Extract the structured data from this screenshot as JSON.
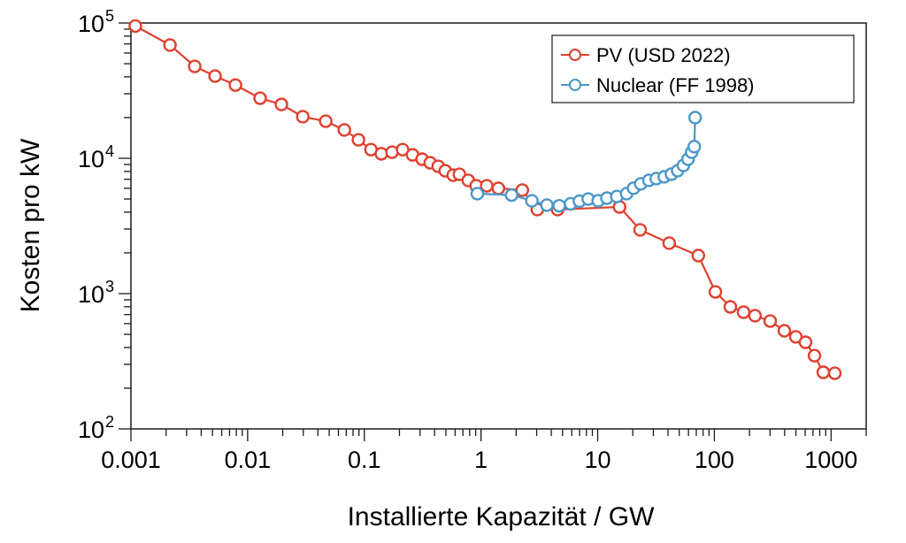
{
  "chart_data": {
    "type": "line",
    "title": "",
    "xlabel": "Installierte Kapazität / GW",
    "ylabel": "Kosten pro kW",
    "xscale": "log",
    "yscale": "log",
    "xlim": [
      0.001,
      2000
    ],
    "ylim": [
      100,
      100000
    ],
    "x_ticks": [
      {
        "value": 0.001,
        "label": "0.001"
      },
      {
        "value": 0.01,
        "label": "0.01"
      },
      {
        "value": 0.1,
        "label": "0.1"
      },
      {
        "value": 1,
        "label": "1"
      },
      {
        "value": 10,
        "label": "10"
      },
      {
        "value": 100,
        "label": "100"
      },
      {
        "value": 1000,
        "label": "1000"
      }
    ],
    "y_ticks": [
      {
        "value": 100,
        "base": "10",
        "exp": "2"
      },
      {
        "value": 1000,
        "base": "10",
        "exp": "3"
      },
      {
        "value": 10000,
        "base": "10",
        "exp": "4"
      },
      {
        "value": 100000,
        "base": "10",
        "exp": "5"
      }
    ],
    "grid": false,
    "legend_position": "top-right",
    "series": [
      {
        "name": "PV (USD 2022)",
        "color": "#e0402f",
        "marker": "open-circle",
        "x": [
          0.00109,
          0.00216,
          0.00352,
          0.00526,
          0.00786,
          0.0128,
          0.0195,
          0.0297,
          0.0467,
          0.0674,
          0.0891,
          0.114,
          0.14,
          0.173,
          0.213,
          0.259,
          0.313,
          0.367,
          0.43,
          0.494,
          0.578,
          0.653,
          0.778,
          0.91,
          1.12,
          1.41,
          2.26,
          3.04,
          4.54,
          15.4,
          23.1,
          41.0,
          72.9,
          102,
          137,
          178,
          223,
          301,
          398,
          499,
          604,
          721,
          858,
          1077
        ],
        "y": [
          95000,
          68700,
          47800,
          40500,
          34800,
          27800,
          25000,
          20300,
          18800,
          16200,
          13700,
          11600,
          10800,
          11100,
          11600,
          10600,
          9850,
          9270,
          8730,
          8090,
          7510,
          7620,
          6870,
          6270,
          6270,
          6000,
          5820,
          4180,
          4180,
          4370,
          2960,
          2360,
          1910,
          1030,
          798,
          729,
          687,
          627,
          531,
          479,
          437,
          348,
          262,
          258
        ]
      },
      {
        "name": "Nuclear (FF 1998)",
        "color": "#4a97c9",
        "marker": "open-circle",
        "x": [
          0.93,
          1.83,
          2.73,
          3.67,
          4.68,
          5.86,
          6.98,
          8.3,
          10.1,
          12.0,
          14.6,
          17.7,
          20.3,
          23.4,
          27.5,
          31.8,
          37.2,
          42.9,
          48.5,
          54.3,
          59.5,
          63.9,
          67.3,
          68.4
        ],
        "y": [
          5480,
          5350,
          4850,
          4510,
          4460,
          4610,
          4820,
          5000,
          4850,
          5080,
          5220,
          5480,
          6010,
          6470,
          6870,
          7080,
          7300,
          7640,
          8110,
          8850,
          9860,
          11100,
          12200,
          20000
        ]
      }
    ]
  }
}
